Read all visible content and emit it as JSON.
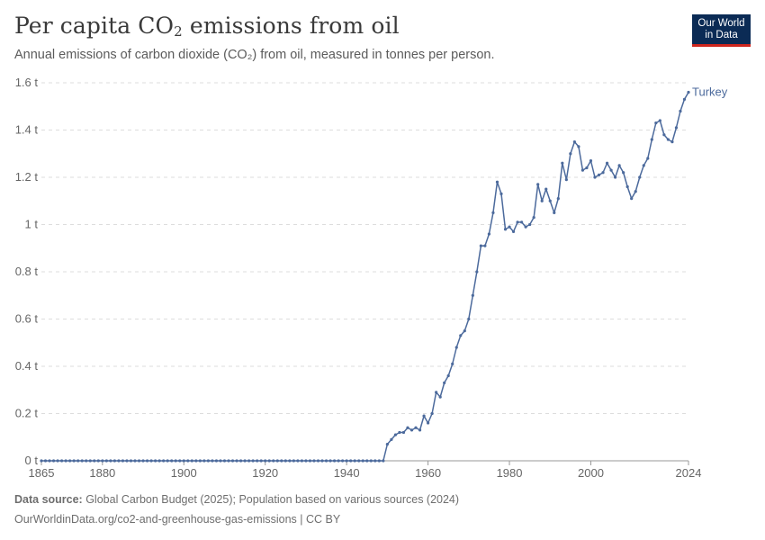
{
  "header": {
    "title_main": "Per capita CO",
    "title_sub": "2",
    "title_rest": " emissions from oil",
    "subtitle": "Annual emissions of carbon dioxide (CO₂) from oil, measured in tonnes per person."
  },
  "logo": {
    "line1": "Our World",
    "line2": "in Data"
  },
  "footer": {
    "source_label": "Data source:",
    "source_text": " Global Carbon Budget (2025); Population based on various sources (2024)",
    "url": "OurWorldinData.org/co2-and-greenhouse-gas-emissions | CC BY"
  },
  "colors": {
    "series": "#4c6a9c",
    "grid": "#dddddd",
    "axis": "#666666"
  },
  "chart_data": {
    "type": "line",
    "title": "Per capita CO₂ emissions from oil",
    "subtitle": "Annual emissions of carbon dioxide (CO₂) from oil, measured in tonnes per person.",
    "xlim": [
      1865,
      2024
    ],
    "ylim": [
      0,
      1.6
    ],
    "x_ticks": [
      1865,
      1880,
      1900,
      1920,
      1940,
      1960,
      1980,
      2000,
      2024
    ],
    "y_ticks": [
      0,
      0.2,
      0.4,
      0.6,
      0.8,
      1,
      1.2,
      1.4,
      1.6
    ],
    "y_tick_labels": [
      "0 t",
      "0.2 t",
      "0.4 t",
      "0.6 t",
      "0.8 t",
      "1 t",
      "1.2 t",
      "1.4 t",
      "1.6 t"
    ],
    "grid": "horizontal dashed",
    "legend": "inline label at line end",
    "series": [
      {
        "name": "Turkey",
        "x": [
          1865,
          1866,
          1867,
          1868,
          1869,
          1870,
          1871,
          1872,
          1873,
          1874,
          1875,
          1876,
          1877,
          1878,
          1879,
          1880,
          1881,
          1882,
          1883,
          1884,
          1885,
          1886,
          1887,
          1888,
          1889,
          1890,
          1891,
          1892,
          1893,
          1894,
          1895,
          1896,
          1897,
          1898,
          1899,
          1900,
          1901,
          1902,
          1903,
          1904,
          1905,
          1906,
          1907,
          1908,
          1909,
          1910,
          1911,
          1912,
          1913,
          1914,
          1915,
          1916,
          1917,
          1918,
          1919,
          1920,
          1921,
          1922,
          1923,
          1924,
          1925,
          1926,
          1927,
          1928,
          1929,
          1930,
          1931,
          1932,
          1933,
          1934,
          1935,
          1936,
          1937,
          1938,
          1939,
          1940,
          1941,
          1942,
          1943,
          1944,
          1945,
          1946,
          1947,
          1948,
          1949,
          1950,
          1951,
          1952,
          1953,
          1954,
          1955,
          1956,
          1957,
          1958,
          1959,
          1960,
          1961,
          1962,
          1963,
          1964,
          1965,
          1966,
          1967,
          1968,
          1969,
          1970,
          1971,
          1972,
          1973,
          1974,
          1975,
          1976,
          1977,
          1978,
          1979,
          1980,
          1981,
          1982,
          1983,
          1984,
          1985,
          1986,
          1987,
          1988,
          1989,
          1990,
          1991,
          1992,
          1993,
          1994,
          1995,
          1996,
          1997,
          1998,
          1999,
          2000,
          2001,
          2002,
          2003,
          2004,
          2005,
          2006,
          2007,
          2008,
          2009,
          2010,
          2011,
          2012,
          2013,
          2014,
          2015,
          2016,
          2017,
          2018,
          2019,
          2020,
          2021,
          2022,
          2023,
          2024
        ],
        "y": [
          0,
          0,
          0,
          0,
          0,
          0,
          0,
          0,
          0,
          0,
          0,
          0,
          0,
          0,
          0,
          0,
          0,
          0,
          0,
          0,
          0,
          0,
          0,
          0,
          0,
          0,
          0,
          0,
          0,
          0,
          0,
          0,
          0,
          0,
          0,
          0,
          0,
          0,
          0,
          0,
          0,
          0,
          0,
          0,
          0,
          0,
          0,
          0,
          0,
          0,
          0,
          0,
          0,
          0,
          0,
          0,
          0,
          0,
          0,
          0,
          0,
          0,
          0,
          0,
          0,
          0,
          0,
          0,
          0,
          0,
          0,
          0,
          0,
          0,
          0,
          0,
          0,
          0,
          0,
          0,
          0,
          0,
          0,
          0,
          0,
          0.07,
          0.09,
          0.11,
          0.12,
          0.12,
          0.14,
          0.13,
          0.14,
          0.13,
          0.19,
          0.16,
          0.2,
          0.29,
          0.27,
          0.33,
          0.36,
          0.41,
          0.48,
          0.53,
          0.55,
          0.6,
          0.7,
          0.8,
          0.91,
          0.91,
          0.96,
          1.05,
          1.18,
          1.13,
          0.98,
          0.99,
          0.97,
          1.01,
          1.01,
          0.99,
          1.0,
          1.03,
          1.17,
          1.1,
          1.15,
          1.1,
          1.05,
          1.11,
          1.26,
          1.19,
          1.3,
          1.35,
          1.33,
          1.23,
          1.24,
          1.27,
          1.2,
          1.21,
          1.22,
          1.26,
          1.23,
          1.2,
          1.25,
          1.22,
          1.16,
          1.11,
          1.14,
          1.2,
          1.25,
          1.28,
          1.36,
          1.43,
          1.44,
          1.38,
          1.36,
          1.35,
          1.41,
          1.48,
          1.53,
          1.56
        ]
      }
    ]
  }
}
